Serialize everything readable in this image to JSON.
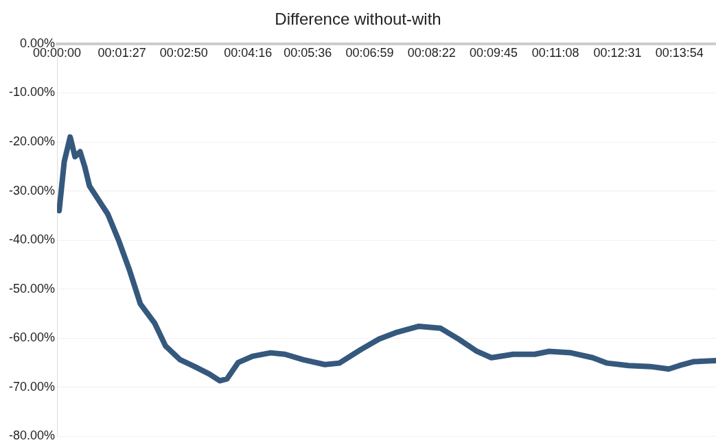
{
  "chart_data": {
    "type": "line",
    "title": "Difference without-with",
    "series": [
      {
        "color": "#35587d",
        "x": [
          0.0008,
          0.0027,
          0.0049,
          0.0067,
          0.0086,
          0.0103,
          0.0121,
          0.0189,
          0.0229,
          0.0269,
          0.031,
          0.0364,
          0.0404,
          0.0458,
          0.0512,
          0.0566,
          0.0606,
          0.0633,
          0.0674,
          0.0728,
          0.0795,
          0.0849,
          0.0916,
          0.0997,
          0.1051,
          0.1132,
          0.1199,
          0.1266,
          0.1347,
          0.1428,
          0.1495,
          0.1563,
          0.1617,
          0.1698,
          0.1778,
          0.1832,
          0.1913,
          0.1994,
          0.2048,
          0.2128,
          0.2209,
          0.2277,
          0.2317,
          0.2371,
          0.2452
        ],
        "values": [
          -34,
          -24,
          -19,
          -23,
          -22,
          -25,
          -29,
          -34.7,
          -40,
          -46,
          -53,
          -57,
          -61.6,
          -64.4,
          -65.8,
          -67.3,
          -68.7,
          -68.3,
          -65,
          -63.7,
          -63,
          -63.3,
          -64.4,
          -65.4,
          -65.1,
          -62.3,
          -60.2,
          -58.8,
          -57.6,
          -58,
          -60.2,
          -62.7,
          -64,
          -63.3,
          -63.3,
          -62.7,
          -63,
          -64,
          -65.1,
          -65.6,
          -65.8,
          -66.3,
          -65.6,
          -64.8,
          -64.6
        ]
      }
    ],
    "xlim": [
      0,
      0.2453
    ],
    "xticks": [
      {
        "value": 0,
        "label": "00:00:00"
      },
      {
        "value": 0.02417,
        "label": "00:01:27"
      },
      {
        "value": 0.04722,
        "label": "00:02:50"
      },
      {
        "value": 0.07111,
        "label": "00:04:16"
      },
      {
        "value": 0.09333,
        "label": "00:05:36"
      },
      {
        "value": 0.11639,
        "label": "00:06:59"
      },
      {
        "value": 0.13944,
        "label": "00:08:22"
      },
      {
        "value": 0.1625,
        "label": "00:09:45"
      },
      {
        "value": 0.18556,
        "label": "00:11:08"
      },
      {
        "value": 0.20861,
        "label": "00:12:31"
      },
      {
        "value": 0.23167,
        "label": "00:13:54"
      }
    ],
    "ylim": [
      -80,
      0
    ],
    "yticks": [
      {
        "value": -80,
        "label": "-80.00%"
      },
      {
        "value": -70,
        "label": "-70.00%"
      },
      {
        "value": -60,
        "label": "-60.00%"
      },
      {
        "value": -50,
        "label": "-50.00%"
      },
      {
        "value": -40,
        "label": "-40.00%"
      },
      {
        "value": -30,
        "label": "-30.00%"
      },
      {
        "value": -20,
        "label": "-20.00%"
      },
      {
        "value": -10,
        "label": "-10.00%"
      },
      {
        "value": 0,
        "label": "0.00%"
      }
    ],
    "grid": "y",
    "legend": false,
    "marker": "none",
    "line_style": "solid"
  }
}
